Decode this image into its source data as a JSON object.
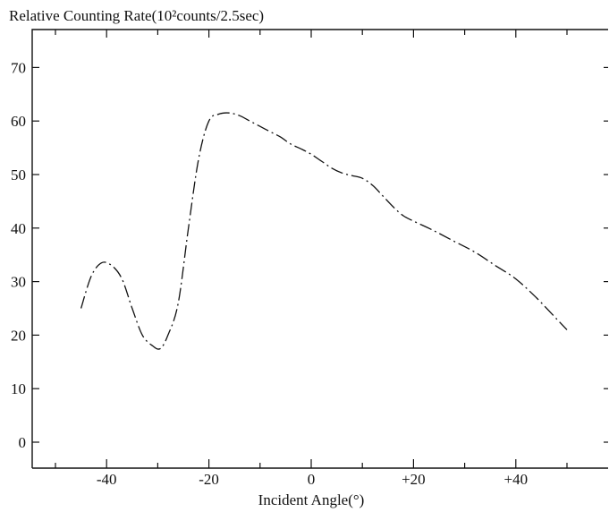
{
  "chart_data": {
    "type": "line",
    "title": "",
    "ylabel": "Relative Counting Rate(10²counts/2.5sec)",
    "xlabel": "Incident Angle(°)",
    "xlim": [
      -55,
      58
    ],
    "ylim": [
      0,
      80
    ],
    "x_ticks": [
      -40,
      -20,
      0,
      20,
      40
    ],
    "x_tick_labels": [
      "-40",
      "-20",
      "0",
      "+20",
      "+40"
    ],
    "y_ticks": [
      0,
      10,
      20,
      30,
      40,
      50,
      60,
      70
    ],
    "y_tick_labels": [
      "0",
      "10",
      "20",
      "30",
      "40",
      "50",
      "60",
      "70"
    ],
    "grid": false,
    "line_style": "dash-dot",
    "series": [
      {
        "x": [
          -45,
          -43,
          -41,
          -39,
          -37,
          -35,
          -33,
          -31,
          -29.5,
          -28,
          -26,
          -24,
          -22,
          -20,
          -18,
          -16,
          -14,
          -12,
          -10,
          -8,
          -6,
          -4,
          -2,
          0,
          2,
          4,
          6,
          8,
          10,
          12,
          14,
          16,
          18,
          20,
          24,
          28,
          32,
          36,
          40,
          44,
          48,
          50
        ],
        "y": [
          25,
          31,
          33.5,
          33,
          30.5,
          25,
          20,
          18,
          17.5,
          20,
          26,
          40,
          53,
          60,
          61.3,
          61.5,
          61,
          60,
          59,
          58,
          57,
          55.7,
          54.8,
          53.8,
          52.5,
          51.2,
          50.3,
          49.8,
          49.3,
          48,
          46,
          44,
          42.3,
          41.3,
          39.5,
          37.5,
          35.5,
          33,
          30.5,
          27,
          23,
          21
        ]
      }
    ]
  }
}
